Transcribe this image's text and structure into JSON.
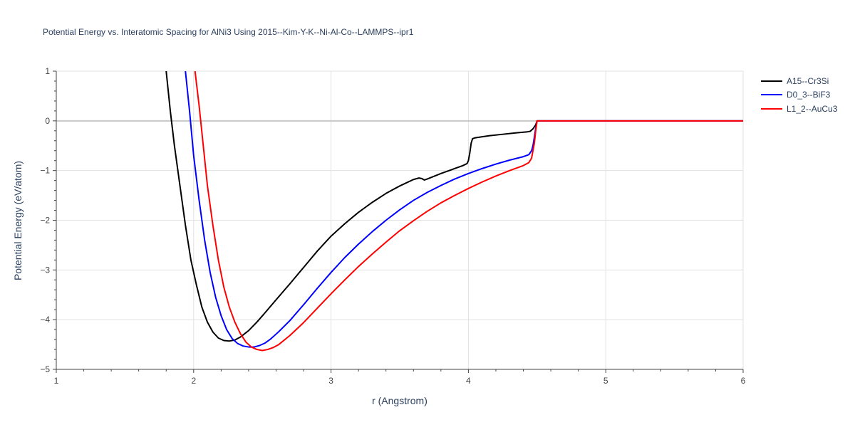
{
  "chart_data": {
    "type": "line",
    "title": "Potential Energy vs. Interatomic Spacing for AlNi3 Using 2015--Kim-Y-K--Ni-Al-Co--LAMMPS--ipr1",
    "xlabel": "r (Angstrom)",
    "ylabel": "Potential Energy (eV/atom)",
    "xlim": [
      1,
      6
    ],
    "ylim": [
      -5,
      1
    ],
    "xticks": [
      1,
      2,
      3,
      4,
      5,
      6
    ],
    "yticks": [
      1,
      0,
      -1,
      -2,
      -3,
      -4,
      -5
    ],
    "xtick_labels": [
      "1",
      "2",
      "3",
      "4",
      "5",
      "6"
    ],
    "ytick_labels": [
      "1",
      "0",
      "−1",
      "−2",
      "−3",
      "−4",
      "−5"
    ],
    "grid": true,
    "legend_position": "top-right-outside",
    "series": [
      {
        "name": "A15--Cr3Si",
        "color": "#000000",
        "x": [
          1.8,
          1.83,
          1.86,
          1.9,
          1.94,
          1.98,
          2.02,
          2.06,
          2.1,
          2.14,
          2.18,
          2.22,
          2.26,
          2.3,
          2.34,
          2.4,
          2.46,
          2.52,
          2.6,
          2.7,
          2.8,
          2.9,
          3.0,
          3.1,
          3.2,
          3.3,
          3.4,
          3.5,
          3.6,
          3.64,
          3.66,
          3.68,
          3.7,
          3.8,
          3.9,
          3.96,
          3.99,
          4.0,
          4.01,
          4.02,
          4.03,
          4.05,
          4.15,
          4.25,
          4.35,
          4.43,
          4.45,
          4.47,
          4.49,
          4.5,
          4.55,
          5.0,
          6.0
        ],
        "y": [
          1.0,
          0.2,
          -0.5,
          -1.3,
          -2.1,
          -2.8,
          -3.3,
          -3.75,
          -4.05,
          -4.25,
          -4.37,
          -4.42,
          -4.43,
          -4.41,
          -4.35,
          -4.22,
          -4.05,
          -3.86,
          -3.6,
          -3.28,
          -2.95,
          -2.62,
          -2.32,
          -2.07,
          -1.84,
          -1.64,
          -1.46,
          -1.31,
          -1.18,
          -1.15,
          -1.16,
          -1.19,
          -1.17,
          -1.06,
          -0.96,
          -0.9,
          -0.86,
          -0.8,
          -0.65,
          -0.45,
          -0.36,
          -0.34,
          -0.3,
          -0.27,
          -0.24,
          -0.22,
          -0.21,
          -0.16,
          -0.08,
          0.0,
          0.0,
          0.0,
          0.0
        ]
      },
      {
        "name": "D0_3--BiF3",
        "color": "#0000ff",
        "x": [
          1.94,
          1.97,
          2.0,
          2.04,
          2.08,
          2.12,
          2.16,
          2.2,
          2.24,
          2.28,
          2.32,
          2.36,
          2.4,
          2.44,
          2.48,
          2.52,
          2.56,
          2.62,
          2.7,
          2.8,
          2.9,
          3.0,
          3.1,
          3.2,
          3.3,
          3.4,
          3.5,
          3.6,
          3.7,
          3.8,
          3.9,
          4.0,
          4.1,
          4.2,
          4.3,
          4.4,
          4.44,
          4.46,
          4.47,
          4.48,
          4.49,
          4.5,
          4.55,
          5.0,
          6.0
        ],
        "y": [
          1.0,
          0.2,
          -0.7,
          -1.6,
          -2.4,
          -3.05,
          -3.55,
          -3.92,
          -4.2,
          -4.38,
          -4.48,
          -4.53,
          -4.55,
          -4.55,
          -4.52,
          -4.47,
          -4.39,
          -4.24,
          -4.02,
          -3.7,
          -3.37,
          -3.05,
          -2.75,
          -2.48,
          -2.23,
          -2.0,
          -1.79,
          -1.6,
          -1.44,
          -1.3,
          -1.17,
          -1.06,
          -0.96,
          -0.87,
          -0.79,
          -0.72,
          -0.68,
          -0.6,
          -0.5,
          -0.33,
          -0.15,
          0.0,
          0.0,
          0.0,
          0.0
        ]
      },
      {
        "name": "L1_2--AuCu3",
        "color": "#ff0000",
        "x": [
          2.01,
          2.04,
          2.07,
          2.1,
          2.14,
          2.18,
          2.22,
          2.26,
          2.3,
          2.34,
          2.38,
          2.42,
          2.46,
          2.5,
          2.54,
          2.58,
          2.62,
          2.7,
          2.8,
          2.9,
          3.0,
          3.1,
          3.2,
          3.3,
          3.4,
          3.5,
          3.6,
          3.7,
          3.8,
          3.9,
          4.0,
          4.1,
          4.2,
          4.3,
          4.4,
          4.44,
          4.46,
          4.48,
          4.49,
          4.5,
          4.55,
          5.0,
          6.0
        ],
        "y": [
          1.0,
          0.3,
          -0.5,
          -1.3,
          -2.1,
          -2.8,
          -3.35,
          -3.75,
          -4.05,
          -4.28,
          -4.45,
          -4.55,
          -4.6,
          -4.62,
          -4.6,
          -4.56,
          -4.5,
          -4.32,
          -4.06,
          -3.77,
          -3.48,
          -3.2,
          -2.93,
          -2.68,
          -2.44,
          -2.21,
          -2.01,
          -1.82,
          -1.65,
          -1.5,
          -1.36,
          -1.23,
          -1.11,
          -1.0,
          -0.9,
          -0.84,
          -0.75,
          -0.45,
          -0.2,
          0.0,
          0.0,
          0.0,
          0.0
        ]
      }
    ]
  }
}
